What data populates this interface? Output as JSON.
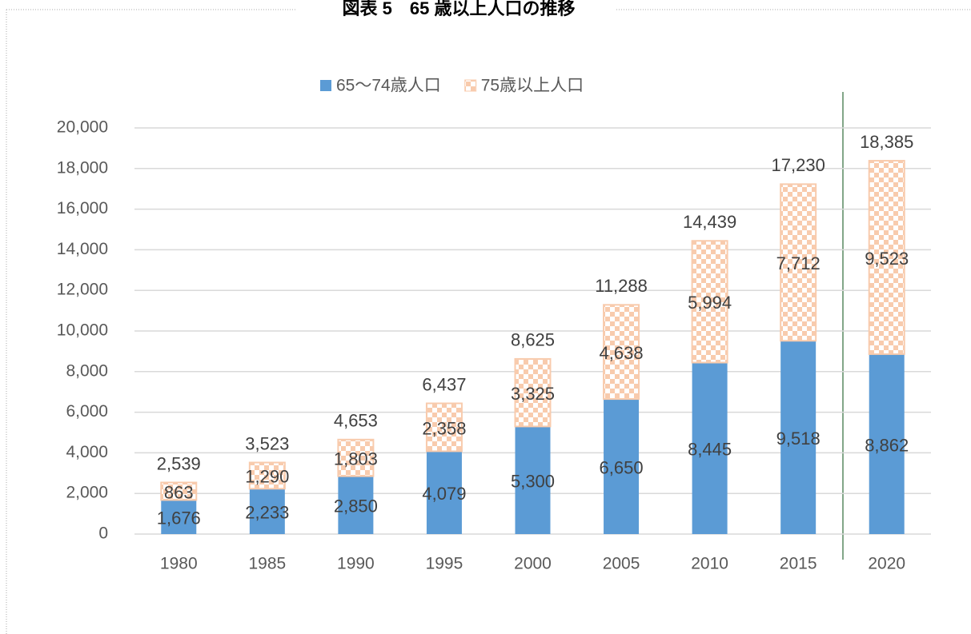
{
  "chart_data": {
    "type": "stacked_bar",
    "title": "図表 5　65 歳以上人口の推移",
    "categories": [
      "1980",
      "1985",
      "1990",
      "1995",
      "2000",
      "2005",
      "2010",
      "2015",
      "2020"
    ],
    "series": [
      {
        "name": "65〜74歳人口",
        "color": "#5b9bd5",
        "pattern": "solid",
        "values": [
          1676,
          2233,
          2850,
          4079,
          5300,
          6650,
          8445,
          9518,
          8862
        ],
        "value_labels": [
          "1,676",
          "2,233",
          "2,850",
          "4,079",
          "5,300",
          "6,650",
          "8,445",
          "9,518",
          "8,862"
        ]
      },
      {
        "name": "75歳以上人口",
        "color": "#f8cbad",
        "pattern": "checker",
        "values": [
          863,
          1290,
          1803,
          2358,
          3325,
          4638,
          5994,
          7712,
          9523
        ],
        "value_labels": [
          "863",
          "1,290",
          "1,803",
          "2,358",
          "3,325",
          "4,638",
          "5,994",
          "7,712",
          "9,523"
        ]
      }
    ],
    "totals": [
      2539,
      3523,
      4653,
      6437,
      8625,
      11288,
      14439,
      17230,
      18385
    ],
    "total_labels": [
      "2,539",
      "3,523",
      "4,653",
      "6,437",
      "8,625",
      "11,288",
      "14,439",
      "17,230",
      "18,385"
    ],
    "ylim": [
      0,
      20000
    ],
    "yticks": [
      0,
      {
        "value": 2000,
        "label": "2,000"
      },
      {
        "value": 4000,
        "label": "4,000"
      },
      {
        "value": 6000,
        "label": "6,000"
      },
      {
        "value": 8000,
        "label": "8,000"
      },
      {
        "value": 10000,
        "label": "10,000"
      },
      {
        "value": 12000,
        "label": "12,000"
      },
      {
        "value": 14000,
        "label": "14,000"
      },
      {
        "value": 16000,
        "label": "16,000"
      },
      {
        "value": 18000,
        "label": "18,000"
      },
      {
        "value": 20000,
        "label": "20,000"
      }
    ],
    "grid": true,
    "legend": "top"
  }
}
